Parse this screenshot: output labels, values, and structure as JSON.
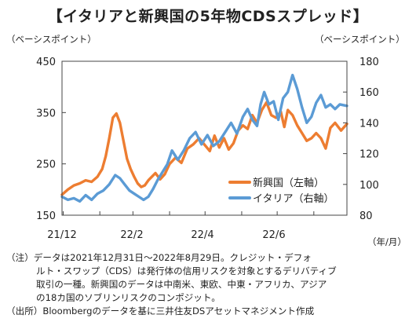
{
  "title": "【イタリアと新興国の5年物CDSスプレッド】",
  "left_unit": "（ベーシスポイント）",
  "right_unit": "（ベーシスポイント）",
  "x_unit": "（年/月）",
  "notes": [
    "（注）データは2021年12月31日～2022年8月29日。クレジット・デフォ",
    "ルト・スワップ（CDS）は発行体の信用リスクを対象とするデリバティブ",
    "取引の一種。新興国のデータは中南米、東欧、中東・アフリカ、アジア",
    "の18カ国のソブリンリスクのコンポジット。",
    "（出所）Bloombergのデータを基に三井住友DSアセットマネジメント作成"
  ],
  "colors": {
    "emerging": "#ed7d31",
    "italy": "#5b9bd5",
    "border": "#444444"
  },
  "chart_data": {
    "type": "line",
    "title": "イタリアと新興国の5年物CDSスプレッド",
    "xlabel": "（年/月）",
    "ylabel_left": "（ベーシスポイント）",
    "ylabel_right": "（ベーシスポイント）",
    "x_ticks": [
      "21/12",
      "22/2",
      "22/4",
      "22/6"
    ],
    "x_range": [
      "2021-12-31",
      "2022-08-29"
    ],
    "left_axis": {
      "ticks": [
        150,
        250,
        350,
        450
      ],
      "ylim": [
        150,
        450
      ]
    },
    "right_axis": {
      "ticks": [
        80,
        100,
        120,
        140,
        160,
        180
      ],
      "ylim": [
        80,
        180
      ]
    },
    "legend_position": "right-center",
    "grid": false,
    "series": [
      {
        "name": "新興国（左軸）",
        "axis": "left",
        "color": "#ed7d31",
        "x": [
          "2021-12-31",
          "2022-01-05",
          "2022-01-10",
          "2022-01-15",
          "2022-01-20",
          "2022-01-25",
          "2022-01-30",
          "2022-02-03",
          "2022-02-06",
          "2022-02-09",
          "2022-02-12",
          "2022-02-15",
          "2022-02-18",
          "2022-02-21",
          "2022-02-24",
          "2022-02-27",
          "2022-03-02",
          "2022-03-05",
          "2022-03-08",
          "2022-03-11",
          "2022-03-14",
          "2022-03-17",
          "2022-03-20",
          "2022-03-24",
          "2022-03-28",
          "2022-04-01",
          "2022-04-06",
          "2022-04-11",
          "2022-04-16",
          "2022-04-21",
          "2022-04-26",
          "2022-05-01",
          "2022-05-05",
          "2022-05-09",
          "2022-05-13",
          "2022-05-17",
          "2022-05-21",
          "2022-05-25",
          "2022-05-29",
          "2022-06-02",
          "2022-06-06",
          "2022-06-10",
          "2022-06-14",
          "2022-06-18",
          "2022-06-22",
          "2022-06-26",
          "2022-06-30",
          "2022-07-04",
          "2022-07-07",
          "2022-07-10",
          "2022-07-14",
          "2022-07-18",
          "2022-07-22",
          "2022-07-26",
          "2022-07-30",
          "2022-08-03",
          "2022-08-07",
          "2022-08-11",
          "2022-08-15",
          "2022-08-19",
          "2022-08-24",
          "2022-08-29"
        ],
        "y": [
          190,
          200,
          208,
          212,
          218,
          215,
          225,
          240,
          265,
          300,
          340,
          348,
          330,
          295,
          260,
          240,
          225,
          212,
          205,
          208,
          218,
          225,
          232,
          220,
          230,
          250,
          262,
          252,
          280,
          288,
          300,
          286,
          275,
          305,
          282,
          300,
          278,
          290,
          315,
          325,
          318,
          345,
          330,
          355,
          370,
          345,
          340,
          352,
          322,
          355,
          345,
          325,
          310,
          295,
          300,
          310,
          300,
          280,
          320,
          330,
          315,
          328
        ]
      },
      {
        "name": "イタリア（右軸）",
        "axis": "right",
        "color": "#5b9bd5",
        "x": [
          "2021-12-31",
          "2022-01-05",
          "2022-01-10",
          "2022-01-15",
          "2022-01-20",
          "2022-01-25",
          "2022-01-30",
          "2022-02-04",
          "2022-02-09",
          "2022-02-14",
          "2022-02-18",
          "2022-02-22",
          "2022-02-26",
          "2022-03-02",
          "2022-03-06",
          "2022-03-10",
          "2022-03-14",
          "2022-03-18",
          "2022-03-22",
          "2022-03-26",
          "2022-03-30",
          "2022-04-03",
          "2022-04-08",
          "2022-04-13",
          "2022-04-18",
          "2022-04-23",
          "2022-04-28",
          "2022-05-03",
          "2022-05-08",
          "2022-05-13",
          "2022-05-18",
          "2022-05-23",
          "2022-05-28",
          "2022-06-02",
          "2022-06-06",
          "2022-06-10",
          "2022-06-14",
          "2022-06-17",
          "2022-06-20",
          "2022-06-24",
          "2022-06-28",
          "2022-07-02",
          "2022-07-06",
          "2022-07-10",
          "2022-07-14",
          "2022-07-18",
          "2022-07-22",
          "2022-07-26",
          "2022-07-30",
          "2022-08-03",
          "2022-08-07",
          "2022-08-11",
          "2022-08-15",
          "2022-08-19",
          "2022-08-23",
          "2022-08-29"
        ],
        "y": [
          92,
          90,
          91,
          89,
          93,
          90,
          94,
          96,
          100,
          106,
          104,
          100,
          96,
          94,
          92,
          90,
          92,
          97,
          103,
          108,
          113,
          122,
          116,
          122,
          130,
          134,
          126,
          132,
          125,
          128,
          134,
          140,
          133,
          144,
          149,
          142,
          138,
          152,
          160,
          152,
          154,
          142,
          156,
          160,
          171,
          162,
          150,
          140,
          144,
          153,
          158,
          150,
          152,
          149,
          152,
          151
        ]
      }
    ]
  }
}
